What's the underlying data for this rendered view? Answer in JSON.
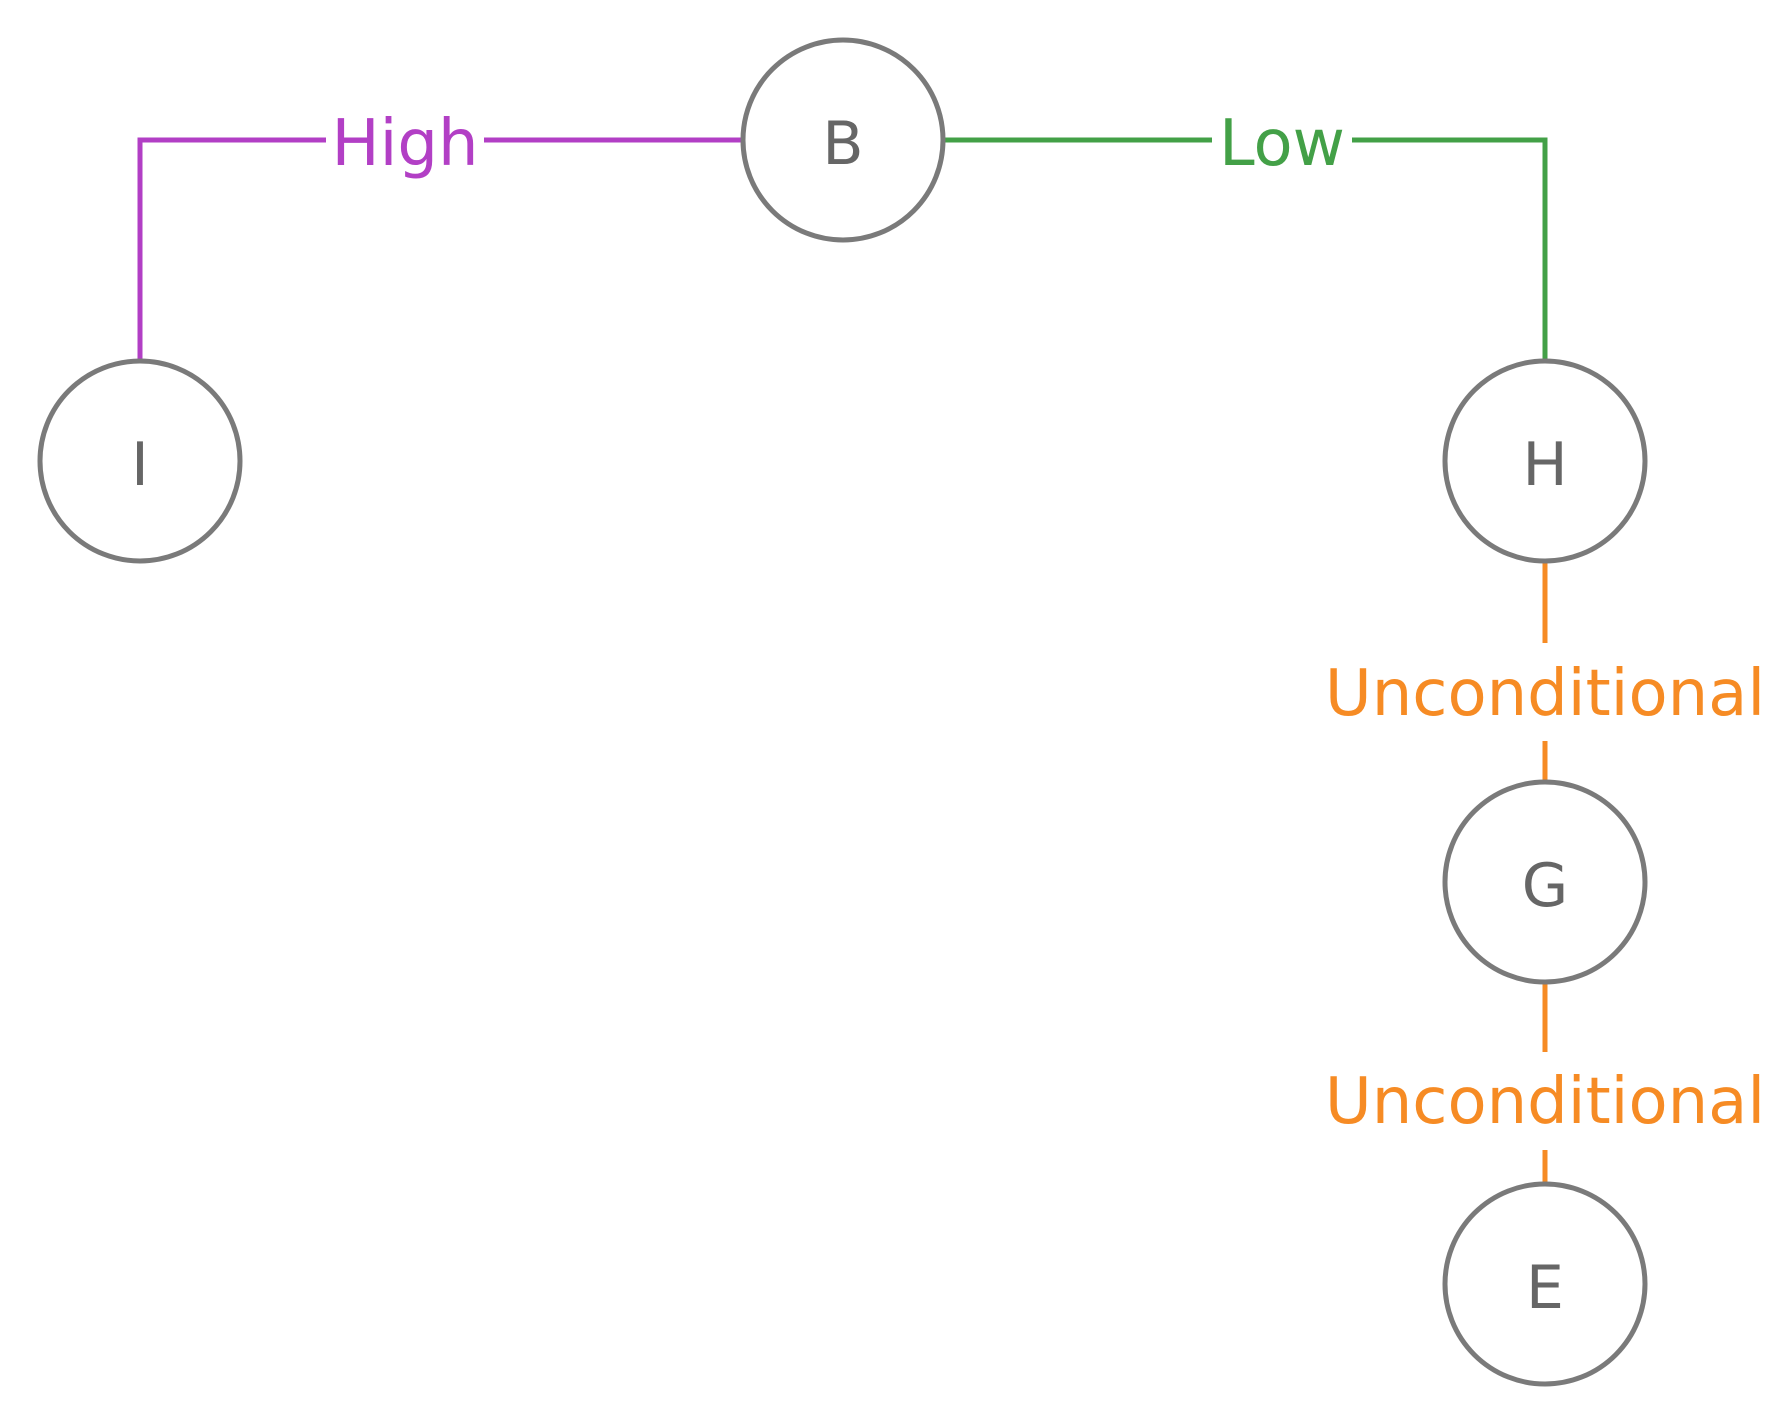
{
  "colors": {
    "node_stroke": "#7a7a7a",
    "node_text": "#666666",
    "high": "#b23fc5",
    "low": "#43a047",
    "unconditional": "#f68b24"
  },
  "nodes": {
    "b": {
      "label": "B"
    },
    "i": {
      "label": "I"
    },
    "h": {
      "label": "H"
    },
    "g": {
      "label": "G"
    },
    "e": {
      "label": "E"
    }
  },
  "edges": {
    "b_i": {
      "label": "High",
      "color_key": "high"
    },
    "b_h": {
      "label": "Low",
      "color_key": "low"
    },
    "h_g": {
      "label": "Unconditional",
      "color_key": "unconditional"
    },
    "g_e": {
      "label": "Unconditional",
      "color_key": "unconditional"
    }
  }
}
